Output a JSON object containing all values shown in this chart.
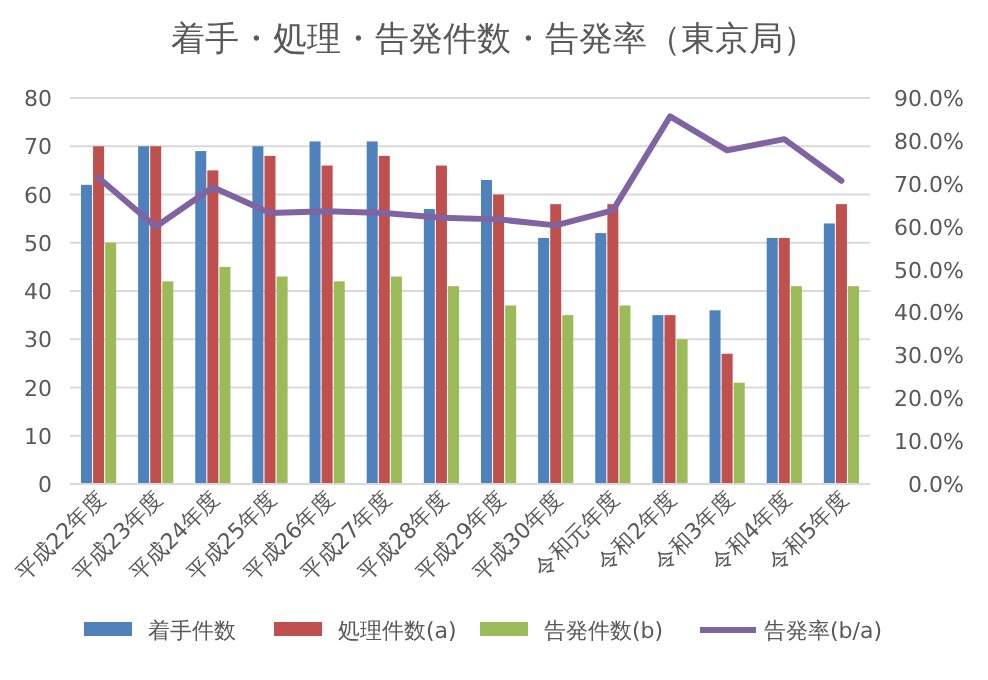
{
  "chart_data": {
    "type": "bar",
    "title": "着手・処理・告発件数・告発率（東京局）",
    "categories": [
      "平成22年度",
      "平成23年度",
      "平成24年度",
      "平成25年度",
      "平成26年度",
      "平成27年度",
      "平成28年度",
      "平成29年度",
      "平成30年度",
      "令和元年度",
      "令和2年度",
      "令和3年度",
      "令和4年度",
      "令和5年度"
    ],
    "series": [
      {
        "name": "着手件数",
        "color": "#4f81bd",
        "values": [
          62,
          70,
          69,
          70,
          71,
          71,
          57,
          63,
          51,
          52,
          35,
          36,
          51,
          54
        ]
      },
      {
        "name": "処理件数(a)",
        "color": "#c0504d",
        "values": [
          70,
          70,
          65,
          68,
          66,
          68,
          66,
          60,
          58,
          58,
          35,
          27,
          51,
          58
        ]
      },
      {
        "name": "告発件数(b)",
        "color": "#9bbb59",
        "values": [
          50,
          42,
          45,
          43,
          42,
          43,
          41,
          37,
          35,
          37,
          30,
          21,
          41,
          41
        ]
      },
      {
        "name": "告発率(b/a)",
        "type": "line",
        "axis": "y2",
        "color": "#8064a2",
        "values": [
          71.4,
          60.0,
          69.2,
          63.2,
          63.6,
          63.2,
          62.1,
          61.7,
          60.3,
          63.8,
          85.7,
          77.8,
          80.4,
          70.7
        ]
      }
    ],
    "ylim": [
      0,
      80
    ],
    "yticks": [
      0,
      10,
      20,
      30,
      40,
      50,
      60,
      70,
      80
    ],
    "y2lim": [
      0,
      90
    ],
    "y2ticks": [
      {
        "value": 0,
        "label": "0.0%"
      },
      {
        "value": 10,
        "label": "10.0%"
      },
      {
        "value": 20,
        "label": "20.0%"
      },
      {
        "value": 30,
        "label": "30.0%"
      },
      {
        "value": 40,
        "label": "40.0%"
      },
      {
        "value": 50,
        "label": "50.0%"
      },
      {
        "value": 60,
        "label": "60.0%"
      },
      {
        "value": 70,
        "label": "70.0%"
      },
      {
        "value": 80,
        "label": "80.0%"
      },
      {
        "value": 90,
        "label": "90.0%"
      }
    ],
    "grid": "y",
    "legend": "bottom"
  }
}
